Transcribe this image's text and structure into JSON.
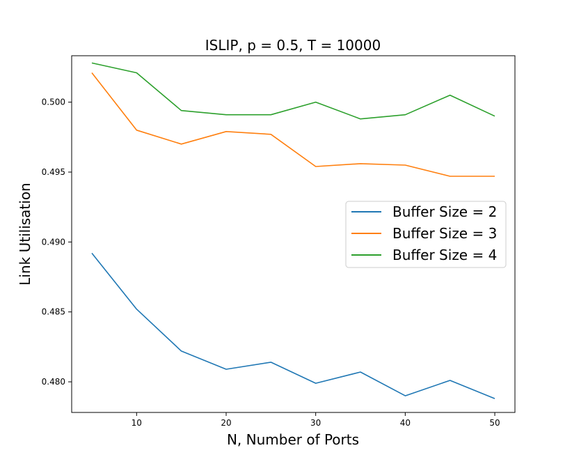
{
  "chart_data": {
    "type": "line",
    "title": "ISLIP, p = 0.5, T = 10000",
    "xlabel": "N, Number of Ports",
    "ylabel": "Link Utilisation",
    "x": [
      5,
      10,
      15,
      20,
      25,
      30,
      35,
      40,
      45,
      50
    ],
    "xlim": [
      2.75,
      52.25
    ],
    "ylim": [
      0.47781,
      0.50332
    ],
    "x_ticks": [
      10,
      20,
      30,
      40,
      50
    ],
    "x_tick_labels": [
      "10",
      "20",
      "30",
      "40",
      "50"
    ],
    "y_ticks": [
      0.48,
      0.485,
      0.49,
      0.495,
      0.5
    ],
    "y_tick_labels": [
      "0.480",
      "0.485",
      "0.490",
      "0.495",
      "0.500"
    ],
    "grid": false,
    "legend_position": "right",
    "series": [
      {
        "name": "Buffer Size = 2",
        "color": "#1f77b4",
        "values": [
          0.4892,
          0.4852,
          0.4822,
          0.4809,
          0.4814,
          0.4799,
          0.4807,
          0.479,
          0.4801,
          0.4788
        ]
      },
      {
        "name": "Buffer Size = 3",
        "color": "#ff7f0e",
        "values": [
          0.5021,
          0.498,
          0.497,
          0.4979,
          0.4977,
          0.4954,
          0.4956,
          0.4955,
          0.4947,
          0.4947
        ]
      },
      {
        "name": "Buffer Size = 4",
        "color": "#2ca02c",
        "values": [
          0.5028,
          0.5021,
          0.4994,
          0.4991,
          0.4991,
          0.5,
          0.4988,
          0.4991,
          0.5005,
          0.499
        ]
      }
    ]
  }
}
